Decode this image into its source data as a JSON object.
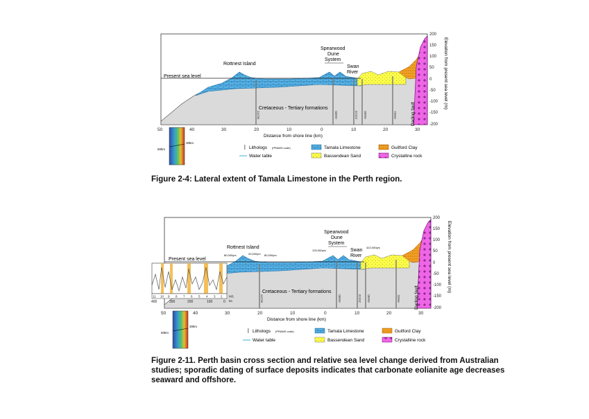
{
  "figure1": {
    "caption": "Figure 2-4: Lateral extent of Tamala Limestone in the Perth region.",
    "labels": {
      "rottnest": "Rottnest Island",
      "spearwood1": "Spearwood",
      "spearwood2": "Dune",
      "spearwood3": "System",
      "swan1": "Swan",
      "swan2": "River",
      "sea_level": "Present sea level",
      "cretaceous": "Cretaceous - Tertiary formations",
      "darling": "Darling fault",
      "xaxis": "Distance from shore line (km)",
      "yaxis": "Elevation from present sea level (m)",
      "bores": [
        "ROTT",
        "AM30",
        "ZOO2",
        "AM40",
        "AM41"
      ]
    },
    "x_ticks": [
      "50",
      "40",
      "30",
      "20",
      "10",
      "0",
      "10",
      "20",
      "30"
    ],
    "y_ticks": [
      "200",
      "150",
      "100",
      "50",
      "0",
      "-50",
      "-100",
      "-150",
      "-200"
    ],
    "inset": {
      "label_50": "50km",
      "label_30": "30km"
    },
    "legend": {
      "lithologs": "Lithologs",
      "lithologs_code": "(PRAMS code)",
      "water_table": "Water table",
      "tamala": "Tamala Limestone",
      "bassendean": "Bassendean Sand",
      "guilford": "Guilford Clay",
      "crystalline": "Crystalline rock"
    }
  },
  "figure2": {
    "caption_lines": [
      "Figure 2-11. Perth basin cross section and relative sea level change derived from Australian",
      "studies; sporadic dating of surface deposits indicates that carbonate eolianite age decreases",
      "seaward and offshore."
    ],
    "labels": {
      "rottnest": "Rottnest Island",
      "age_80": "80,000yrs",
      "age_20": "20,000yrs",
      "age_80b": "80,000yrs",
      "age_125": "125,000yrs",
      "age_422": "422,000yrs",
      "spearwood1": "Spearwood",
      "spearwood2": "Dune",
      "spearwood3": "System",
      "swan1": "Swan",
      "swan2": "River",
      "sea_level": "Present sea level",
      "cretaceous": "Cretaceous - Tertiary formations",
      "darling": "Darling fault",
      "xaxis": "Distance from shore line (km)",
      "yaxis": "Elevation from present sea level (m)",
      "bores": [
        "ROTT",
        "AM30",
        "ZOO2",
        "AM40",
        "AM41"
      ]
    },
    "x_ticks": [
      "50",
      "40",
      "30",
      "20",
      "10",
      "0",
      "10",
      "20",
      "30"
    ],
    "y_ticks": [
      "200",
      "150",
      "100",
      "50",
      "0",
      "-50",
      "-100",
      "-150",
      "-200"
    ],
    "sea_inset": {
      "stages": [
        "11",
        "10",
        "9",
        "8",
        "7",
        "6",
        "5",
        "4",
        "3",
        "2"
      ],
      "ms": "MS",
      "ka": "ka",
      "age_ticks": [
        "400",
        "300",
        "200",
        "100",
        "0"
      ]
    },
    "inset": {
      "label_50": "50km",
      "label_30": "30km"
    },
    "legend": {
      "lithologs": "Lithologs",
      "lithologs_code": "(PRAMS code)",
      "water_table": "Water table",
      "tamala": "Tamala Limestone",
      "bassendean": "Bassendean Sand",
      "guilford": "Guilford Clay",
      "crystalline": "Crystalline rock"
    }
  }
}
